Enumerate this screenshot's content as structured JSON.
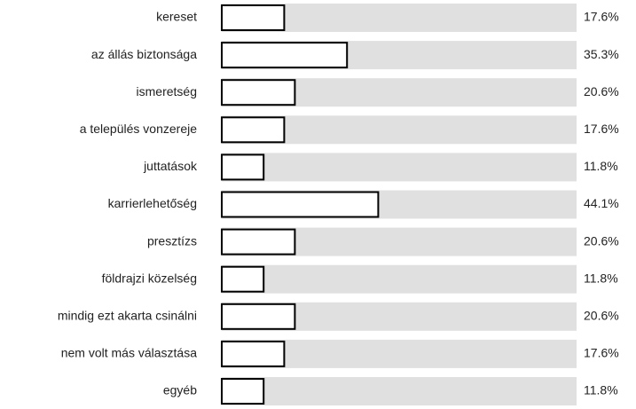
{
  "chart_data": {
    "type": "bar",
    "orientation": "horizontal",
    "categories": [
      "kereset",
      "az állás biztonsága",
      "ismeretség",
      "a település vonzereje",
      "juttatások",
      "karrierlehetőség",
      "presztízs",
      "földrajzi közelség",
      "mindig ezt akarta csinálni",
      "nem volt más választása",
      "egyéb"
    ],
    "values": [
      17.6,
      35.3,
      20.6,
      17.6,
      11.8,
      44.1,
      20.6,
      11.8,
      20.6,
      17.6,
      11.8
    ],
    "value_labels": [
      "17.6%",
      "35.3%",
      "20.6%",
      "17.6%",
      "11.8%",
      "44.1%",
      "20.6%",
      "11.8%",
      "20.6%",
      "17.6%",
      "11.8%"
    ],
    "color": "#ffffff",
    "track_color": "#e0e0e0",
    "border_color": "#000000",
    "xlim": [
      0,
      100
    ]
  }
}
